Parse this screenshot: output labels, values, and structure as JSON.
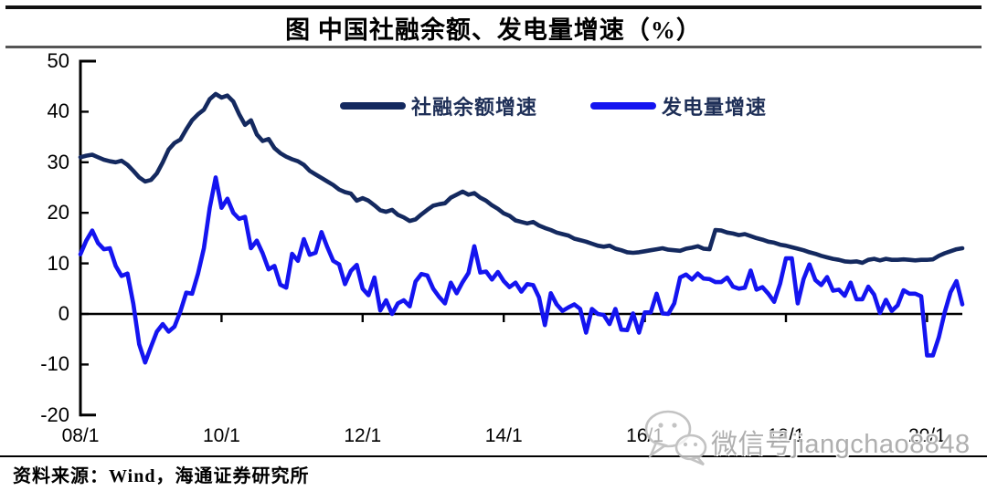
{
  "title": "图  中国社融余额、发电量增速（%）",
  "source": "资料来源：Wind，海通证券研究所",
  "watermark": {
    "icon": "wechat-icon",
    "text": "微信号jiangchao8848"
  },
  "colors": {
    "series1": "#14295f",
    "series2": "#1414f0",
    "axis": "#000000",
    "watermark_gray": "#ababab"
  },
  "chart_data": {
    "type": "line",
    "title": "图  中国社融余额、发电量增速（%）",
    "xlabel": "",
    "ylabel": "",
    "ylim": [
      -20,
      50
    ],
    "y_ticks": [
      50,
      40,
      30,
      20,
      10,
      0,
      -10,
      -20
    ],
    "x_tick_labels": [
      "08/1",
      "10/1",
      "12/1",
      "14/1",
      "16/1",
      "18/1",
      "20/1"
    ],
    "x_frequency": "monthly",
    "x_start": "2008/1",
    "x_end": "2020/7",
    "grid": false,
    "legend_position": "top-center-inside",
    "series": [
      {
        "name": "社融余额增速",
        "color": "#14295f",
        "values": [
          31.0,
          31.3,
          31.5,
          31.0,
          30.5,
          30.2,
          30.0,
          30.3,
          29.5,
          28.3,
          27.0,
          26.2,
          26.5,
          27.8,
          30.0,
          32.5,
          33.8,
          34.5,
          36.5,
          38.3,
          39.5,
          40.4,
          42.5,
          43.5,
          42.8,
          43.2,
          42.0,
          39.5,
          37.4,
          38.3,
          35.5,
          34.2,
          34.6,
          32.8,
          31.8,
          31.1,
          30.6,
          30.2,
          29.5,
          28.3,
          27.6,
          26.9,
          26.2,
          25.5,
          24.6,
          24.1,
          23.8,
          22.4,
          22.9,
          22.4,
          21.5,
          20.5,
          20.2,
          20.6,
          19.6,
          19.1,
          18.4,
          18.7,
          19.7,
          20.6,
          21.4,
          21.7,
          21.9,
          23.0,
          23.6,
          24.2,
          23.6,
          23.9,
          23.0,
          22.4,
          21.5,
          20.8,
          19.9,
          19.4,
          18.5,
          18.2,
          17.9,
          18.2,
          17.5,
          17.0,
          16.6,
          16.1,
          15.8,
          15.5,
          14.9,
          14.6,
          14.3,
          13.9,
          13.5,
          13.3,
          13.5,
          12.9,
          12.6,
          12.2,
          12.1,
          12.2,
          12.4,
          12.6,
          12.8,
          13.0,
          12.7,
          12.6,
          12.5,
          12.9,
          13.1,
          13.4,
          12.9,
          12.8,
          16.6,
          16.5,
          16.1,
          15.9,
          15.6,
          15.8,
          15.4,
          15.0,
          14.7,
          14.3,
          14.1,
          13.7,
          13.5,
          13.2,
          12.9,
          12.6,
          12.2,
          11.9,
          11.5,
          11.2,
          10.9,
          10.7,
          10.4,
          10.3,
          10.4,
          10.1,
          10.7,
          10.9,
          10.6,
          10.9,
          10.7,
          10.7,
          10.8,
          10.7,
          10.6,
          10.7,
          10.7,
          10.8,
          11.5,
          12.0,
          12.4,
          12.8,
          13.0
        ]
      },
      {
        "name": "发电量增速",
        "color": "#1414f0",
        "values": [
          11.8,
          14.5,
          16.5,
          14.0,
          12.8,
          13.0,
          9.5,
          7.5,
          8.0,
          2.0,
          -6.0,
          -9.6,
          -6.5,
          -3.5,
          -2.0,
          -3.5,
          -2.5,
          0.5,
          4.2,
          4.0,
          8.0,
          13.0,
          21.0,
          27.0,
          21.0,
          22.8,
          20.0,
          18.8,
          19.2,
          13.0,
          14.5,
          12.0,
          8.8,
          9.5,
          5.8,
          5.2,
          11.9,
          10.5,
          14.8,
          11.7,
          12.1,
          16.2,
          13.2,
          10.5,
          9.8,
          5.9,
          8.5,
          9.7,
          5.0,
          3.7,
          7.2,
          0.7,
          2.7,
          0.0,
          2.1,
          2.7,
          1.5,
          6.4,
          7.9,
          7.6,
          5.0,
          3.4,
          2.1,
          6.2,
          4.1,
          6.3,
          8.1,
          13.4,
          8.2,
          8.4,
          6.8,
          8.3,
          6.5,
          5.3,
          6.2,
          4.4,
          5.9,
          5.7,
          3.3,
          -2.2,
          4.1,
          1.9,
          0.6,
          1.3,
          1.9,
          1.0,
          -3.7,
          1.0,
          0.0,
          -0.2,
          -2.0,
          1.0,
          -3.1,
          -3.2,
          0.1,
          -3.7,
          0.3,
          0.3,
          4.0,
          0.1,
          0.0,
          2.1,
          7.2,
          7.8,
          6.8,
          8.0,
          7.0,
          6.9,
          6.3,
          6.3,
          7.2,
          5.4,
          5.0,
          5.2,
          8.6,
          4.8,
          5.3,
          4.0,
          2.4,
          6.0,
          11.0,
          11.0,
          2.1,
          6.9,
          9.8,
          6.7,
          5.7,
          7.3,
          4.6,
          4.8,
          3.6,
          6.2,
          2.9,
          2.9,
          5.4,
          3.8,
          0.2,
          2.8,
          0.6,
          1.7,
          4.7,
          4.0,
          4.0,
          3.5,
          -8.2,
          -8.2,
          -4.6,
          0.3,
          4.3,
          6.5,
          1.9
        ]
      }
    ]
  }
}
